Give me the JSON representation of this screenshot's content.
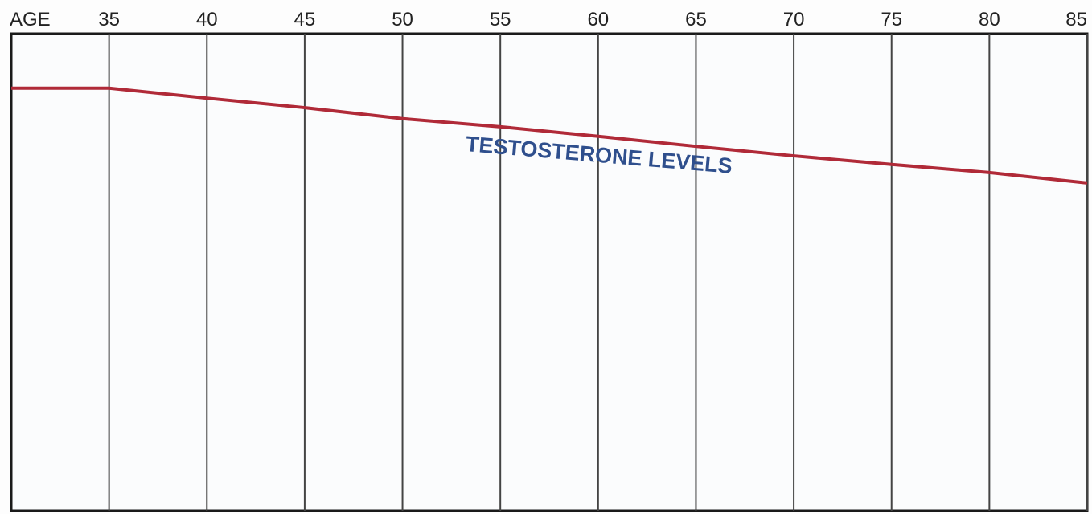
{
  "chart_data": {
    "type": "line",
    "x_label": "AGE",
    "annotation": "TESTOSTERONE LEVELS",
    "x": [
      30,
      35,
      40,
      45,
      50,
      55,
      60,
      65,
      70,
      75,
      80,
      85
    ],
    "values": [
      88.6,
      88.6,
      86.5,
      84.5,
      82.2,
      80.5,
      78.5,
      76.4,
      74.4,
      72.6,
      70.9,
      68.7
    ],
    "color": "#b02a38",
    "xlim": [
      30,
      85
    ],
    "xticks": [
      35,
      40,
      45,
      50,
      55,
      60,
      65,
      70,
      75,
      80,
      85
    ],
    "ylim": [
      0,
      100
    ],
    "grid": true
  }
}
